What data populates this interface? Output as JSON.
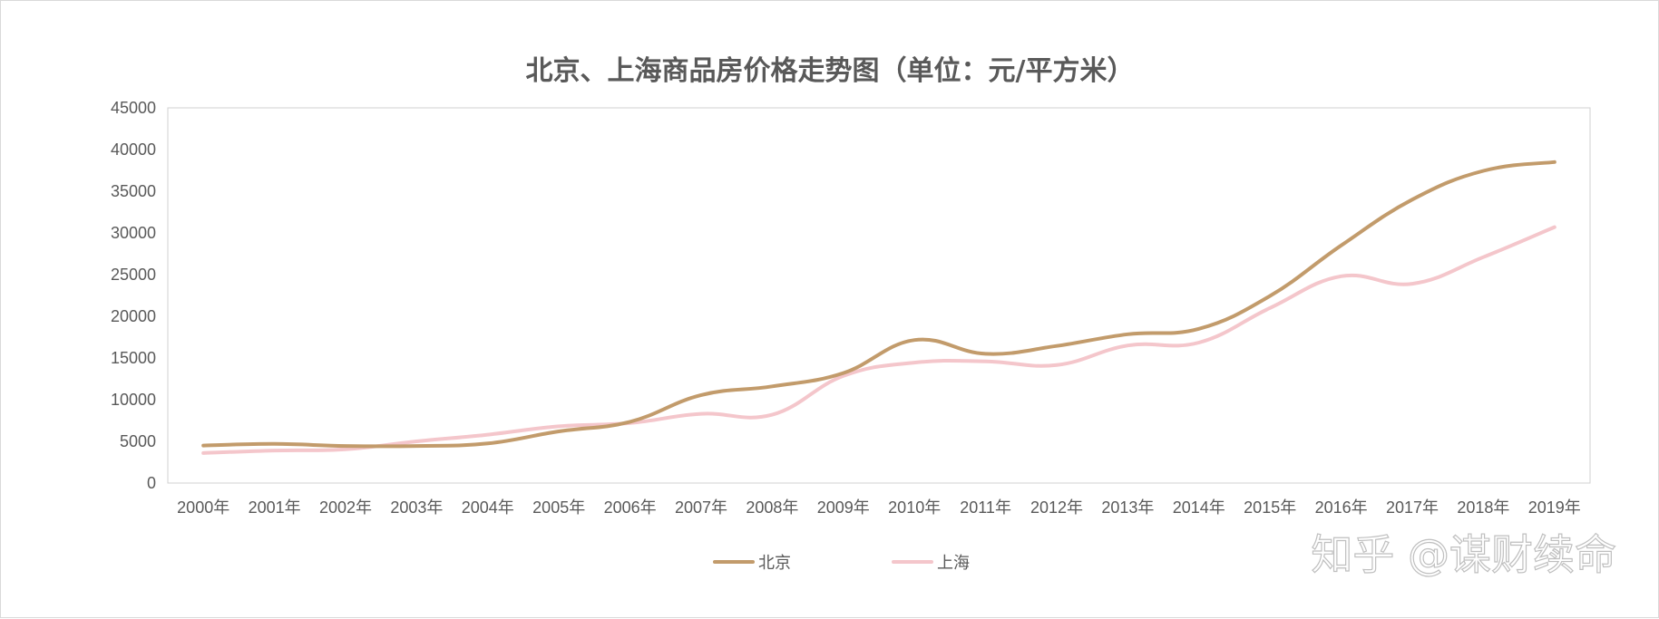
{
  "chart_data": {
    "type": "line",
    "title": "北京、上海商品房价格走势图（单位：元/平方米）",
    "categories": [
      "2000年",
      "2001年",
      "2002年",
      "2003年",
      "2004年",
      "2005年",
      "2006年",
      "2007年",
      "2008年",
      "2009年",
      "2010年",
      "2011年",
      "2012年",
      "2013年",
      "2014年",
      "2015年",
      "2016年",
      "2017年",
      "2018年",
      "2019年"
    ],
    "series": [
      {
        "name": "北京",
        "color": "#c29b6b",
        "values": [
          4500,
          4700,
          4450,
          4450,
          4750,
          6200,
          7350,
          10550,
          11600,
          13200,
          17150,
          15500,
          16450,
          17850,
          18500,
          22450,
          28500,
          34000,
          37450,
          38500
        ]
      },
      {
        "name": "上海",
        "color": "#f4c6cb",
        "values": [
          3600,
          3900,
          4050,
          5000,
          5800,
          6800,
          7200,
          8300,
          8200,
          12850,
          14450,
          14600,
          14150,
          16500,
          16850,
          21000,
          24800,
          23900,
          27100,
          30700
        ]
      }
    ],
    "yticks": [
      "0",
      "5000",
      "10000",
      "15000",
      "20000",
      "25000",
      "30000",
      "35000",
      "40000",
      "45000"
    ],
    "ylim": [
      0,
      45000
    ],
    "grid": false,
    "legend_position": "bottom"
  },
  "watermark": "知乎 @谋财续命"
}
